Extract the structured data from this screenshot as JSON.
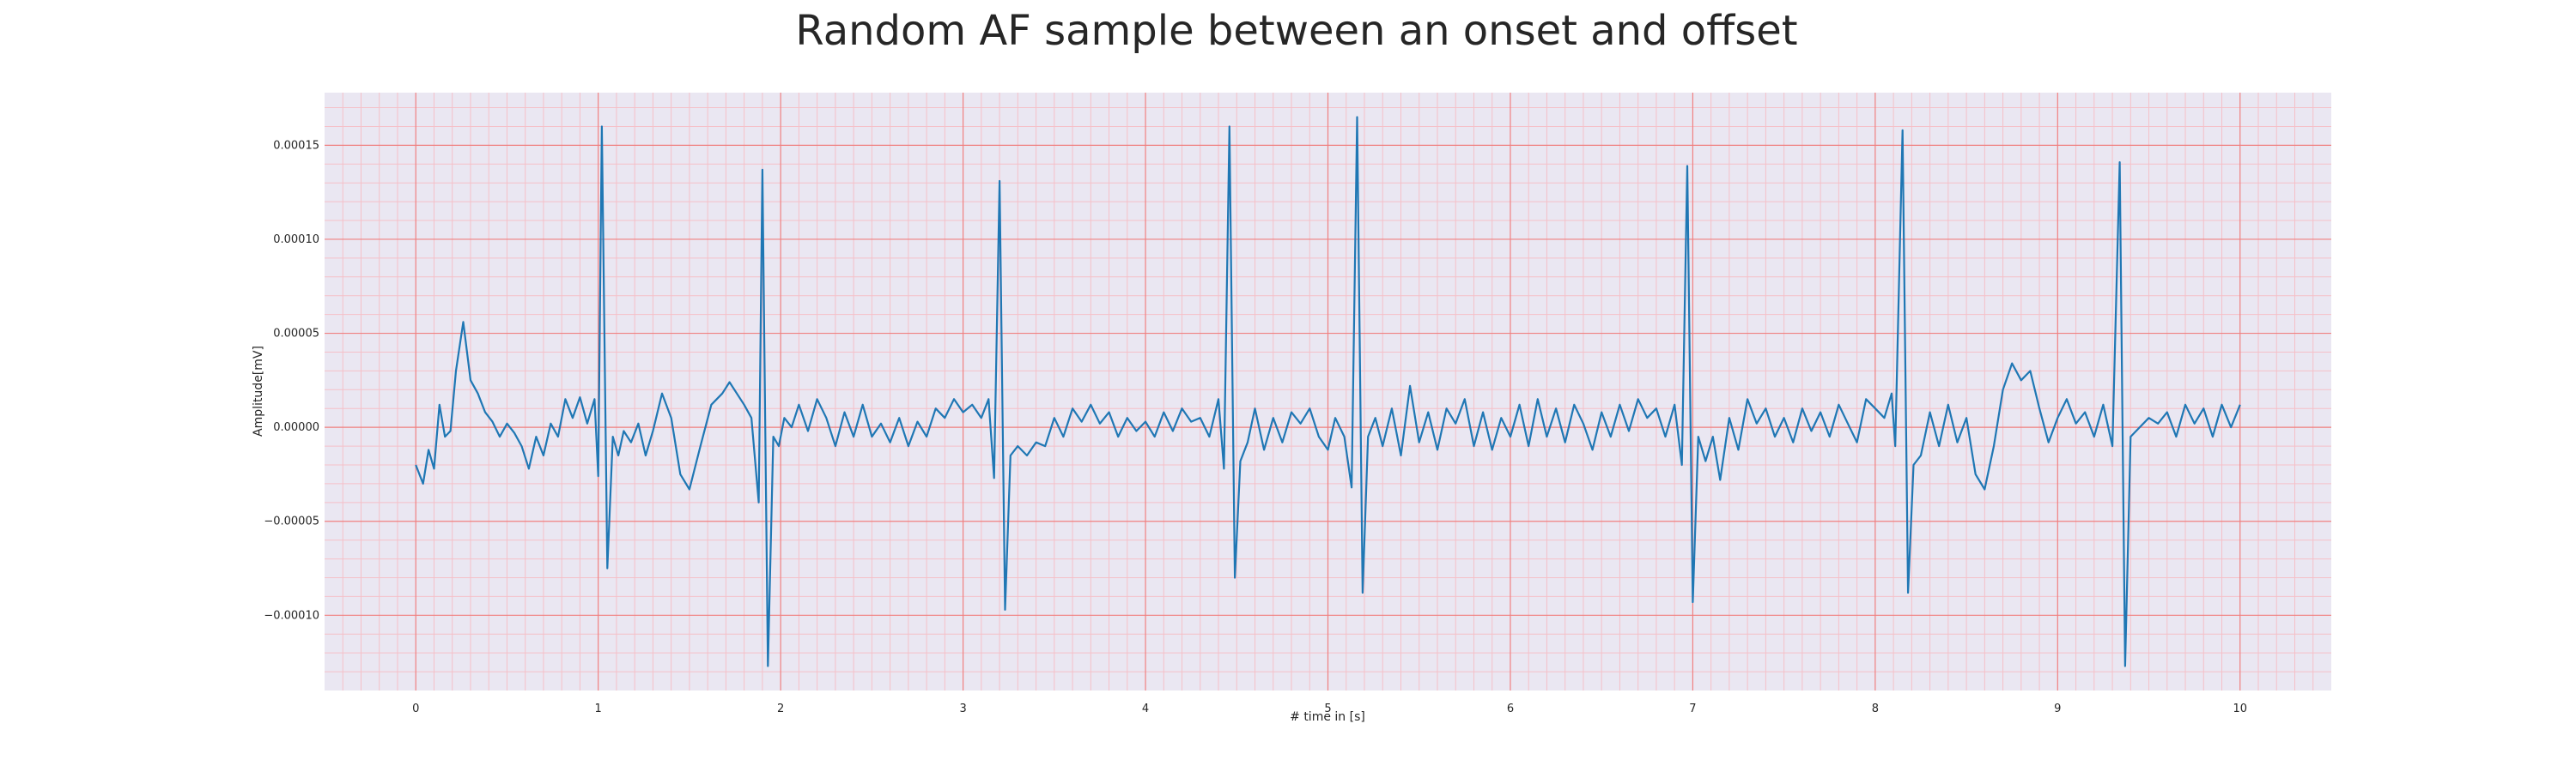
{
  "chart_data": {
    "type": "line",
    "title": "Random AF sample between an onset and offset",
    "xlabel": "# time in [s]",
    "ylabel": "Amplitude[mV]",
    "xlim": [
      -0.5,
      10.5
    ],
    "ylim": [
      -0.00014,
      0.000178
    ],
    "x_ticks": [
      0,
      1,
      2,
      3,
      4,
      5,
      6,
      7,
      8,
      9,
      10
    ],
    "x_tick_labels": [
      "0",
      "1",
      "2",
      "3",
      "4",
      "5",
      "6",
      "7",
      "8",
      "9",
      "10"
    ],
    "y_ticks": [
      -0.0001,
      -5e-05,
      0,
      5e-05,
      0.0001,
      0.00015
    ],
    "y_tick_labels": [
      "−0.00010",
      "−0.00005",
      "0.00000",
      "0.00005",
      "0.00010",
      "0.00015"
    ],
    "grid": true,
    "colors": {
      "line": "#1f77b4",
      "plot_background": "#eae7f2",
      "major_grid": "#f08080",
      "minor_grid": "#f5c0c8"
    },
    "series": [
      {
        "values": [
          [
            0.0,
            -2e-05
          ],
          [
            0.04,
            -3e-05
          ],
          [
            0.07,
            -1.2e-05
          ],
          [
            0.1,
            -2.2e-05
          ],
          [
            0.13,
            1.2e-05
          ],
          [
            0.16,
            -5e-06
          ],
          [
            0.19,
            -2e-06
          ],
          [
            0.22,
            3e-05
          ],
          [
            0.26,
            5.6e-05
          ],
          [
            0.3,
            2.5e-05
          ],
          [
            0.34,
            1.8e-05
          ],
          [
            0.38,
            8e-06
          ],
          [
            0.42,
            3e-06
          ],
          [
            0.46,
            -5e-06
          ],
          [
            0.5,
            2e-06
          ],
          [
            0.54,
            -3e-06
          ],
          [
            0.58,
            -1e-05
          ],
          [
            0.62,
            -2.2e-05
          ],
          [
            0.66,
            -5e-06
          ],
          [
            0.7,
            -1.5e-05
          ],
          [
            0.74,
            2e-06
          ],
          [
            0.78,
            -5e-06
          ],
          [
            0.82,
            1.5e-05
          ],
          [
            0.86,
            5e-06
          ],
          [
            0.9,
            1.6e-05
          ],
          [
            0.94,
            2e-06
          ],
          [
            0.98,
            1.5e-05
          ],
          [
            1.0,
            -2.6e-05
          ],
          [
            1.02,
            0.00016
          ],
          [
            1.05,
            -7.5e-05
          ],
          [
            1.08,
            -5e-06
          ],
          [
            1.11,
            -1.5e-05
          ],
          [
            1.14,
            -2e-06
          ],
          [
            1.18,
            -8e-06
          ],
          [
            1.22,
            2e-06
          ],
          [
            1.26,
            -1.5e-05
          ],
          [
            1.3,
            -2e-06
          ],
          [
            1.35,
            1.8e-05
          ],
          [
            1.4,
            5e-06
          ],
          [
            1.45,
            -2.5e-05
          ],
          [
            1.5,
            -3.3e-05
          ],
          [
            1.56,
            -1e-05
          ],
          [
            1.62,
            1.2e-05
          ],
          [
            1.68,
            1.8e-05
          ],
          [
            1.72,
            2.4e-05
          ],
          [
            1.76,
            1.8e-05
          ],
          [
            1.8,
            1.2e-05
          ],
          [
            1.84,
            5e-06
          ],
          [
            1.88,
            -4e-05
          ],
          [
            1.9,
            0.000137
          ],
          [
            1.93,
            -0.000127
          ],
          [
            1.96,
            -5e-06
          ],
          [
            1.99,
            -1e-05
          ],
          [
            2.02,
            5e-06
          ],
          [
            2.06,
            0.0
          ],
          [
            2.1,
            1.2e-05
          ],
          [
            2.15,
            -2e-06
          ],
          [
            2.2,
            1.5e-05
          ],
          [
            2.25,
            5e-06
          ],
          [
            2.3,
            -1e-05
          ],
          [
            2.35,
            8e-06
          ],
          [
            2.4,
            -5e-06
          ],
          [
            2.45,
            1.2e-05
          ],
          [
            2.5,
            -5e-06
          ],
          [
            2.55,
            2e-06
          ],
          [
            2.6,
            -8e-06
          ],
          [
            2.65,
            5e-06
          ],
          [
            2.7,
            -1e-05
          ],
          [
            2.75,
            3e-06
          ],
          [
            2.8,
            -5e-06
          ],
          [
            2.85,
            1e-05
          ],
          [
            2.9,
            5e-06
          ],
          [
            2.95,
            1.5e-05
          ],
          [
            3.0,
            8e-06
          ],
          [
            3.05,
            1.2e-05
          ],
          [
            3.1,
            5e-06
          ],
          [
            3.14,
            1.5e-05
          ],
          [
            3.17,
            -2.7e-05
          ],
          [
            3.2,
            0.000131
          ],
          [
            3.23,
            -9.7e-05
          ],
          [
            3.26,
            -1.5e-05
          ],
          [
            3.3,
            -1e-05
          ],
          [
            3.35,
            -1.5e-05
          ],
          [
            3.4,
            -8e-06
          ],
          [
            3.45,
            -1e-05
          ],
          [
            3.5,
            5e-06
          ],
          [
            3.55,
            -5e-06
          ],
          [
            3.6,
            1e-05
          ],
          [
            3.65,
            3e-06
          ],
          [
            3.7,
            1.2e-05
          ],
          [
            3.75,
            2e-06
          ],
          [
            3.8,
            8e-06
          ],
          [
            3.85,
            -5e-06
          ],
          [
            3.9,
            5e-06
          ],
          [
            3.95,
            -2e-06
          ],
          [
            4.0,
            3e-06
          ],
          [
            4.05,
            -5e-06
          ],
          [
            4.1,
            8e-06
          ],
          [
            4.15,
            -2e-06
          ],
          [
            4.2,
            1e-05
          ],
          [
            4.25,
            3e-06
          ],
          [
            4.3,
            5e-06
          ],
          [
            4.35,
            -5e-06
          ],
          [
            4.4,
            1.5e-05
          ],
          [
            4.43,
            -2.2e-05
          ],
          [
            4.46,
            0.00016
          ],
          [
            4.49,
            -8e-05
          ],
          [
            4.52,
            -1.8e-05
          ],
          [
            4.56,
            -8e-06
          ],
          [
            4.6,
            1e-05
          ],
          [
            4.65,
            -1.2e-05
          ],
          [
            4.7,
            5e-06
          ],
          [
            4.75,
            -8e-06
          ],
          [
            4.8,
            8e-06
          ],
          [
            4.85,
            2e-06
          ],
          [
            4.9,
            1e-05
          ],
          [
            4.95,
            -5e-06
          ],
          [
            5.0,
            -1.2e-05
          ],
          [
            5.04,
            5e-06
          ],
          [
            5.09,
            -5e-06
          ],
          [
            5.13,
            -3.2e-05
          ],
          [
            5.16,
            0.000165
          ],
          [
            5.19,
            -8.8e-05
          ],
          [
            5.22,
            -5e-06
          ],
          [
            5.26,
            5e-06
          ],
          [
            5.3,
            -1e-05
          ],
          [
            5.35,
            1e-05
          ],
          [
            5.4,
            -1.5e-05
          ],
          [
            5.45,
            2.2e-05
          ],
          [
            5.5,
            -8e-06
          ],
          [
            5.55,
            8e-06
          ],
          [
            5.6,
            -1.2e-05
          ],
          [
            5.65,
            1e-05
          ],
          [
            5.7,
            2e-06
          ],
          [
            5.75,
            1.5e-05
          ],
          [
            5.8,
            -1e-05
          ],
          [
            5.85,
            8e-06
          ],
          [
            5.9,
            -1.2e-05
          ],
          [
            5.95,
            5e-06
          ],
          [
            6.0,
            -5e-06
          ],
          [
            6.05,
            1.2e-05
          ],
          [
            6.1,
            -1e-05
          ],
          [
            6.15,
            1.5e-05
          ],
          [
            6.2,
            -5e-06
          ],
          [
            6.25,
            1e-05
          ],
          [
            6.3,
            -8e-06
          ],
          [
            6.35,
            1.2e-05
          ],
          [
            6.4,
            2e-06
          ],
          [
            6.45,
            -1.2e-05
          ],
          [
            6.5,
            8e-06
          ],
          [
            6.55,
            -5e-06
          ],
          [
            6.6,
            1.2e-05
          ],
          [
            6.65,
            -2e-06
          ],
          [
            6.7,
            1.5e-05
          ],
          [
            6.75,
            5e-06
          ],
          [
            6.8,
            1e-05
          ],
          [
            6.85,
            -5e-06
          ],
          [
            6.9,
            1.2e-05
          ],
          [
            6.94,
            -2e-05
          ],
          [
            6.97,
            0.000139
          ],
          [
            7.0,
            -9.3e-05
          ],
          [
            7.03,
            -5e-06
          ],
          [
            7.07,
            -1.8e-05
          ],
          [
            7.11,
            -5e-06
          ],
          [
            7.15,
            -2.8e-05
          ],
          [
            7.2,
            5e-06
          ],
          [
            7.25,
            -1.2e-05
          ],
          [
            7.3,
            1.5e-05
          ],
          [
            7.35,
            2e-06
          ],
          [
            7.4,
            1e-05
          ],
          [
            7.45,
            -5e-06
          ],
          [
            7.5,
            5e-06
          ],
          [
            7.55,
            -8e-06
          ],
          [
            7.6,
            1e-05
          ],
          [
            7.65,
            -2e-06
          ],
          [
            7.7,
            8e-06
          ],
          [
            7.75,
            -5e-06
          ],
          [
            7.8,
            1.2e-05
          ],
          [
            7.85,
            2e-06
          ],
          [
            7.9,
            -8e-06
          ],
          [
            7.95,
            1.5e-05
          ],
          [
            8.0,
            1e-05
          ],
          [
            8.05,
            5e-06
          ],
          [
            8.09,
            1.8e-05
          ],
          [
            8.11,
            -1e-05
          ],
          [
            8.15,
            0.000158
          ],
          [
            8.18,
            -8.8e-05
          ],
          [
            8.21,
            -2e-05
          ],
          [
            8.25,
            -1.5e-05
          ],
          [
            8.3,
            8e-06
          ],
          [
            8.35,
            -1e-05
          ],
          [
            8.4,
            1.2e-05
          ],
          [
            8.45,
            -8e-06
          ],
          [
            8.5,
            5e-06
          ],
          [
            8.55,
            -2.5e-05
          ],
          [
            8.6,
            -3.3e-05
          ],
          [
            8.65,
            -1e-05
          ],
          [
            8.7,
            2e-05
          ],
          [
            8.75,
            3.4e-05
          ],
          [
            8.8,
            2.5e-05
          ],
          [
            8.85,
            3e-05
          ],
          [
            8.9,
            1e-05
          ],
          [
            8.95,
            -8e-06
          ],
          [
            9.0,
            5e-06
          ],
          [
            9.05,
            1.5e-05
          ],
          [
            9.1,
            2e-06
          ],
          [
            9.15,
            8e-06
          ],
          [
            9.2,
            -5e-06
          ],
          [
            9.25,
            1.2e-05
          ],
          [
            9.3,
            -1e-05
          ],
          [
            9.34,
            0.000141
          ],
          [
            9.37,
            -0.000127
          ],
          [
            9.4,
            -5e-06
          ],
          [
            9.45,
            0.0
          ],
          [
            9.5,
            5e-06
          ],
          [
            9.55,
            2e-06
          ],
          [
            9.6,
            8e-06
          ],
          [
            9.65,
            -5e-06
          ],
          [
            9.7,
            1.2e-05
          ],
          [
            9.75,
            2e-06
          ],
          [
            9.8,
            1e-05
          ],
          [
            9.85,
            -5e-06
          ],
          [
            9.9,
            1.2e-05
          ],
          [
            9.95,
            0.0
          ],
          [
            10.0,
            1.2e-05
          ]
        ]
      }
    ]
  }
}
